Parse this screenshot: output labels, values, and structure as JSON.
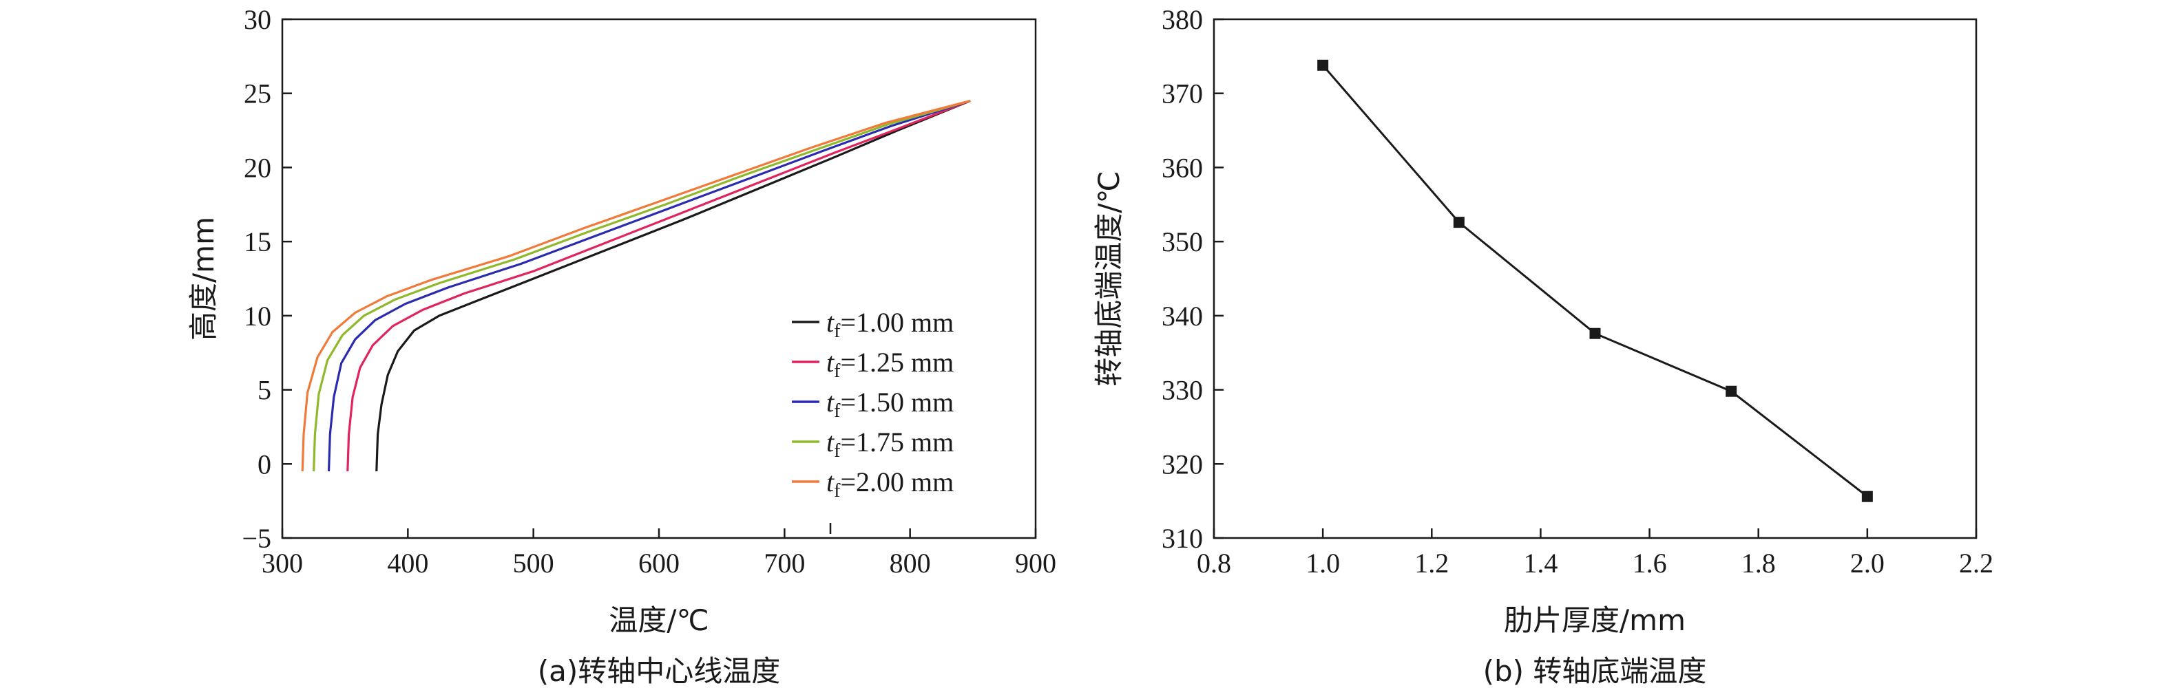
{
  "chart_data": [
    {
      "type": "line",
      "caption": "(a)转轴中心线温度",
      "xlabel": "温度/℃",
      "ylabel": "高度/mm",
      "xlim": [
        300,
        900
      ],
      "ylim": [
        -5,
        30
      ],
      "xticks": [
        "300",
        "400",
        "500",
        "600",
        "700",
        "800",
        "900"
      ],
      "yticks": [
        "−5",
        "0",
        "5",
        "10",
        "15",
        "20",
        "25",
        "30"
      ],
      "legend_position": "right-middle",
      "series": [
        {
          "name_main": "t",
          "name_sub": "f",
          "name_rest": "=1.00 mm",
          "color": "#1a1a1a",
          "points": [
            [
              375,
              -0.5
            ],
            [
              376,
              2
            ],
            [
              379,
              4
            ],
            [
              384,
              6
            ],
            [
              392,
              7.6
            ],
            [
              405,
              9
            ],
            [
              425,
              10
            ],
            [
              455,
              11
            ],
            [
              500,
              12.5
            ],
            [
              560,
              14.5
            ],
            [
              620,
              16.5
            ],
            [
              680,
              18.6
            ],
            [
              740,
              20.7
            ],
            [
              790,
              22.5
            ],
            [
              848,
              24.5
            ]
          ]
        },
        {
          "name_main": "t",
          "name_sub": "f",
          "name_rest": "=1.25 mm",
          "color": "#e0245e",
          "points": [
            [
              352,
              -0.5
            ],
            [
              353,
              2
            ],
            [
              356,
              4.5
            ],
            [
              362,
              6.5
            ],
            [
              372,
              8
            ],
            [
              388,
              9.3
            ],
            [
              412,
              10.4
            ],
            [
              445,
              11.5
            ],
            [
              500,
              13
            ],
            [
              560,
              15
            ],
            [
              620,
              17
            ],
            [
              680,
              19
            ],
            [
              740,
              21
            ],
            [
              790,
              22.6
            ],
            [
              848,
              24.5
            ]
          ]
        },
        {
          "name_main": "t",
          "name_sub": "f",
          "name_rest": "=1.50 mm",
          "color": "#2b2bb0",
          "points": [
            [
              337,
              -0.5
            ],
            [
              338,
              2
            ],
            [
              341,
              4.5
            ],
            [
              347,
              6.8
            ],
            [
              358,
              8.4
            ],
            [
              374,
              9.7
            ],
            [
              398,
              10.8
            ],
            [
              432,
              11.9
            ],
            [
              490,
              13.5
            ],
            [
              550,
              15.4
            ],
            [
              610,
              17.3
            ],
            [
              670,
              19.2
            ],
            [
              730,
              21.1
            ],
            [
              785,
              22.8
            ],
            [
              848,
              24.5
            ]
          ]
        },
        {
          "name_main": "t",
          "name_sub": "f",
          "name_rest": "=1.75 mm",
          "color": "#8fb82a",
          "points": [
            [
              325,
              -0.5
            ],
            [
              326,
              2
            ],
            [
              329,
              4.7
            ],
            [
              336,
              7
            ],
            [
              348,
              8.7
            ],
            [
              365,
              10
            ],
            [
              390,
              11.1
            ],
            [
              425,
              12.2
            ],
            [
              485,
              13.8
            ],
            [
              545,
              15.7
            ],
            [
              605,
              17.5
            ],
            [
              665,
              19.4
            ],
            [
              725,
              21.2
            ],
            [
              782,
              22.9
            ],
            [
              848,
              24.5
            ]
          ]
        },
        {
          "name_main": "t",
          "name_sub": "f",
          "name_rest": "=2.00 mm",
          "color": "#f07a3a",
          "points": [
            [
              316,
              -0.5
            ],
            [
              317,
              2
            ],
            [
              320,
              4.8
            ],
            [
              328,
              7.2
            ],
            [
              340,
              8.9
            ],
            [
              358,
              10.2
            ],
            [
              383,
              11.3
            ],
            [
              418,
              12.4
            ],
            [
              480,
              14
            ],
            [
              540,
              15.9
            ],
            [
              600,
              17.7
            ],
            [
              660,
              19.5
            ],
            [
              720,
              21.3
            ],
            [
              780,
              23
            ],
            [
              848,
              24.5
            ]
          ]
        }
      ]
    },
    {
      "type": "line",
      "caption": "(b) 转轴底端温度",
      "xlabel": "肋片厚度/mm",
      "ylabel": "转轴底端温度/℃",
      "xlim": [
        0.8,
        2.2
      ],
      "ylim": [
        310,
        380
      ],
      "xticks": [
        "0.8",
        "1.0",
        "1.2",
        "1.4",
        "1.6",
        "1.8",
        "2.0",
        "2.2"
      ],
      "yticks": [
        "310",
        "320",
        "330",
        "340",
        "350",
        "360",
        "370",
        "380"
      ],
      "series": [
        {
          "color": "#1a1a1a",
          "x": [
            1.0,
            1.25,
            1.5,
            1.75,
            2.0
          ],
          "y": [
            373.8,
            352.6,
            337.6,
            329.8,
            315.6
          ]
        }
      ]
    }
  ]
}
